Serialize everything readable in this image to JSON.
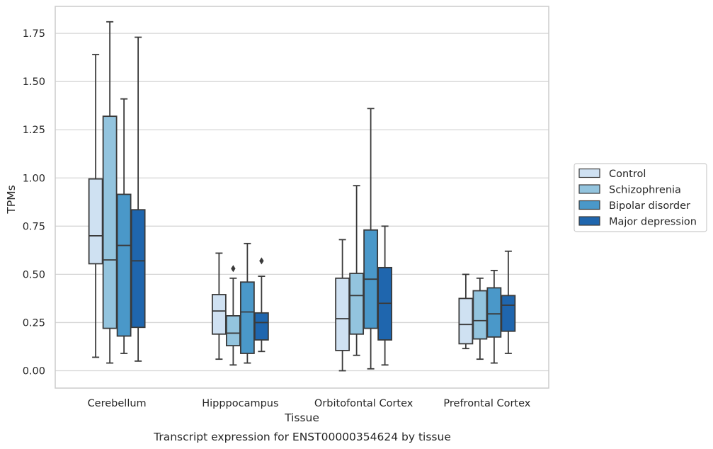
{
  "chart_data": {
    "type": "box",
    "xlabel": "Tissue",
    "ylabel": "TPMs",
    "caption": "Transcript expression for ENST00000354624 by tissue",
    "ylim": [
      -0.09,
      1.89
    ],
    "yticks": [
      "0.00",
      "0.25",
      "0.50",
      "0.75",
      "1.00",
      "1.25",
      "1.50",
      "1.75"
    ],
    "grid": "horizontal",
    "legend_position": "right",
    "categories": [
      "Cerebellum",
      "Hipppocampus",
      "Orbitofontal Cortex",
      "Prefrontal Cortex"
    ],
    "series": [
      {
        "name": "Control",
        "color": "#cfe1f2",
        "boxes": [
          {
            "whisker_low": 0.07,
            "q1": 0.555,
            "median": 0.7,
            "q3": 0.995,
            "whisker_high": 1.64,
            "outliers": []
          },
          {
            "whisker_low": 0.06,
            "q1": 0.19,
            "median": 0.31,
            "q3": 0.395,
            "whisker_high": 0.61,
            "outliers": []
          },
          {
            "whisker_low": 0.0,
            "q1": 0.105,
            "median": 0.27,
            "q3": 0.48,
            "whisker_high": 0.68,
            "outliers": []
          },
          {
            "whisker_low": 0.115,
            "q1": 0.14,
            "median": 0.24,
            "q3": 0.375,
            "whisker_high": 0.5,
            "outliers": []
          }
        ]
      },
      {
        "name": "Schizophrenia",
        "color": "#93c4de",
        "boxes": [
          {
            "whisker_low": 0.04,
            "q1": 0.22,
            "median": 0.575,
            "q3": 1.32,
            "whisker_high": 1.81,
            "outliers": []
          },
          {
            "whisker_low": 0.03,
            "q1": 0.13,
            "median": 0.195,
            "q3": 0.285,
            "whisker_high": 0.48,
            "outliers": [
              0.53
            ]
          },
          {
            "whisker_low": 0.08,
            "q1": 0.19,
            "median": 0.39,
            "q3": 0.505,
            "whisker_high": 0.96,
            "outliers": []
          },
          {
            "whisker_low": 0.06,
            "q1": 0.165,
            "median": 0.26,
            "q3": 0.415,
            "whisker_high": 0.48,
            "outliers": []
          }
        ]
      },
      {
        "name": "Bipolar disorder",
        "color": "#4a98c9",
        "boxes": [
          {
            "whisker_low": 0.09,
            "q1": 0.18,
            "median": 0.65,
            "q3": 0.915,
            "whisker_high": 1.41,
            "outliers": []
          },
          {
            "whisker_low": 0.04,
            "q1": 0.09,
            "median": 0.305,
            "q3": 0.46,
            "whisker_high": 0.66,
            "outliers": []
          },
          {
            "whisker_low": 0.01,
            "q1": 0.22,
            "median": 0.475,
            "q3": 0.73,
            "whisker_high": 1.36,
            "outliers": []
          },
          {
            "whisker_low": 0.04,
            "q1": 0.175,
            "median": 0.295,
            "q3": 0.43,
            "whisker_high": 0.52,
            "outliers": []
          }
        ]
      },
      {
        "name": "Major depression",
        "color": "#1f66ae",
        "boxes": [
          {
            "whisker_low": 0.05,
            "q1": 0.225,
            "median": 0.57,
            "q3": 0.835,
            "whisker_high": 1.73,
            "outliers": []
          },
          {
            "whisker_low": 0.1,
            "q1": 0.16,
            "median": 0.25,
            "q3": 0.3,
            "whisker_high": 0.49,
            "outliers": [
              0.57
            ]
          },
          {
            "whisker_low": 0.03,
            "q1": 0.16,
            "median": 0.35,
            "q3": 0.535,
            "whisker_high": 0.75,
            "outliers": []
          },
          {
            "whisker_low": 0.09,
            "q1": 0.205,
            "median": 0.34,
            "q3": 0.39,
            "whisker_high": 0.62,
            "outliers": []
          }
        ]
      }
    ]
  }
}
